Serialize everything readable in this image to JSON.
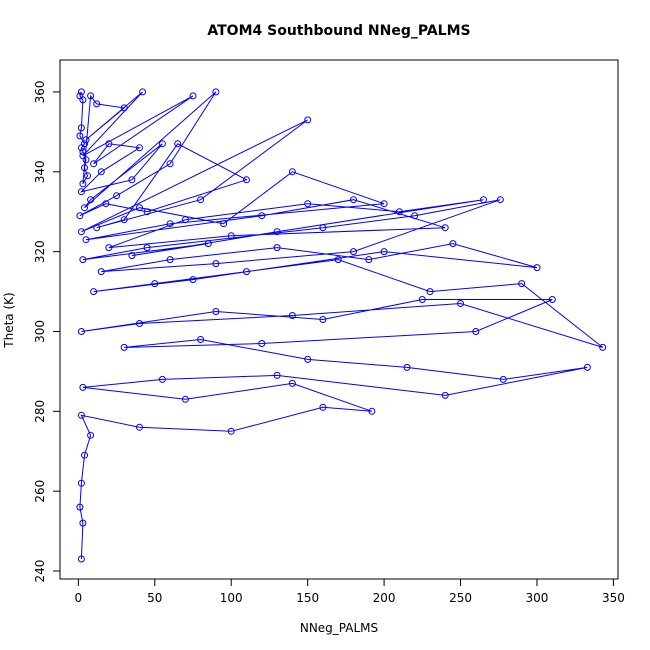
{
  "chart_data": {
    "type": "line",
    "title": "ATOM4 Southbound NNeg_PALMS",
    "xlabel": "NNeg_PALMS",
    "ylabel": "Theta (K)",
    "xlim": [
      -12,
      353
    ],
    "ylim": [
      238,
      368
    ],
    "x_ticks": [
      0,
      50,
      100,
      150,
      200,
      250,
      300,
      350
    ],
    "y_ticks": [
      240,
      260,
      280,
      300,
      320,
      340,
      360
    ],
    "x_tick_labels": [
      "0",
      "50",
      "100",
      "150",
      "200",
      "250",
      "300",
      "350"
    ],
    "y_tick_labels": [
      "240",
      "260",
      "280",
      "300",
      "320",
      "340",
      "360"
    ],
    "grid": false,
    "legend": "none",
    "series_color": "#0000ff",
    "markers": "open-circle",
    "series": [
      {
        "x": [
          2,
          1,
          3,
          2,
          1,
          4,
          2,
          3,
          5,
          4,
          6,
          3,
          8,
          12,
          30,
          5,
          42,
          3,
          75,
          10,
          20,
          40,
          15,
          2,
          35,
          55,
          8,
          4,
          90,
          60,
          25,
          1,
          18,
          45,
          110,
          65,
          30,
          12,
          80,
          150,
          2,
          40,
          95,
          140,
          200,
          60,
          5,
          120,
          180,
          240,
          100,
          20,
          70,
          150,
          210,
          265,
          130,
          35,
          85,
          3,
          45,
          160,
          220,
          276,
          180,
          90,
          15,
          60,
          130,
          190,
          245,
          300,
          200,
          75,
          10,
          50,
          110,
          170,
          230,
          290,
          343,
          250,
          140,
          40,
          2,
          90,
          160,
          225,
          310,
          260,
          120,
          30,
          80,
          150,
          215,
          278,
          333,
          240,
          130,
          55,
          3,
          70,
          140,
          192,
          160,
          100,
          40,
          2,
          8,
          4,
          2,
          1,
          3,
          2
        ],
        "y": [
          360,
          359,
          358,
          351,
          349,
          347,
          346,
          345,
          343,
          341,
          339,
          337,
          359,
          357,
          356,
          348,
          360,
          344,
          359,
          342,
          347,
          346,
          340,
          335,
          338,
          347,
          333,
          331,
          360,
          342,
          334,
          329,
          332,
          330,
          338,
          347,
          328,
          326,
          333,
          353,
          325,
          331,
          327,
          340,
          332,
          327,
          323,
          329,
          333,
          326,
          324,
          321,
          328,
          332,
          330,
          333,
          325,
          319,
          322,
          318,
          321,
          326,
          329,
          333,
          320,
          317,
          315,
          318,
          321,
          318,
          322,
          316,
          320,
          313,
          310,
          312,
          315,
          318,
          310,
          312,
          296,
          307,
          304,
          302,
          300,
          305,
          303,
          308,
          308,
          300,
          297,
          296,
          298,
          293,
          291,
          288,
          291,
          284,
          289,
          288,
          286,
          283,
          287,
          280,
          281,
          275,
          276,
          279,
          274,
          269,
          262,
          256,
          252,
          243
        ]
      }
    ]
  }
}
